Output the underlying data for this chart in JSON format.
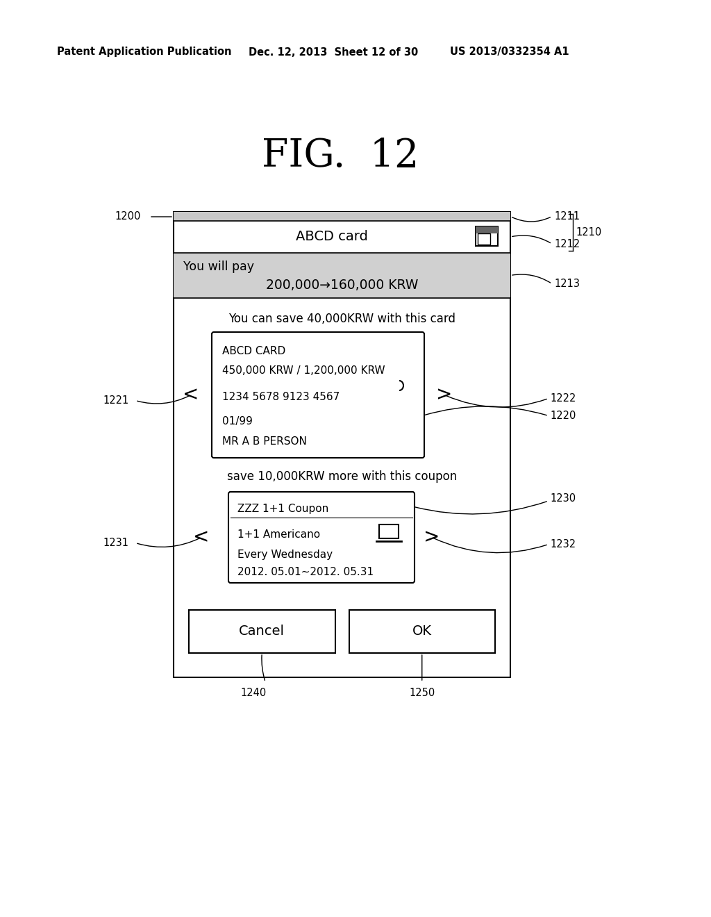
{
  "header_left": "Patent Application Publication",
  "header_mid": "Dec. 12, 2013  Sheet 12 of 30",
  "header_right": "US 2013/0332354 A1",
  "fig_title": "FIG.  12",
  "bg_color": "#ffffff",
  "gray_strip": "#c8c8c8",
  "gray_pay": "#d0d0d0",
  "label_1200": "1200",
  "label_1210": "1210",
  "label_1211": "1211",
  "label_1212": "1212",
  "label_1213": "1213",
  "label_1220": "1220",
  "label_1221": "1221",
  "label_1222": "1222",
  "label_1230": "1230",
  "label_1231": "1231",
  "label_1232": "1232",
  "label_1240": "1240",
  "label_1250": "1250",
  "title_bar_text": "ABCD card",
  "payment_line1": "You will pay",
  "payment_line2": "200,000→160,000 KRW",
  "save_card_text": "You can save 40,000KRW with this card",
  "card_name": "ABCD CARD",
  "card_amount": "450,000 KRW / 1,200,000 KRW",
  "card_number": "1234 5678 9123 4567",
  "card_date": "01/99",
  "card_holder": "MR A B PERSON",
  "save_coupon_text": "save 10,000KRW more with this coupon",
  "coupon_title": "ZZZ 1+1 Coupon",
  "coupon_item": "1+1 Americano",
  "coupon_day": "Every Wednesday",
  "coupon_date": "2012. 05.01~2012. 05.31",
  "cancel_text": "Cancel",
  "ok_text": "OK"
}
